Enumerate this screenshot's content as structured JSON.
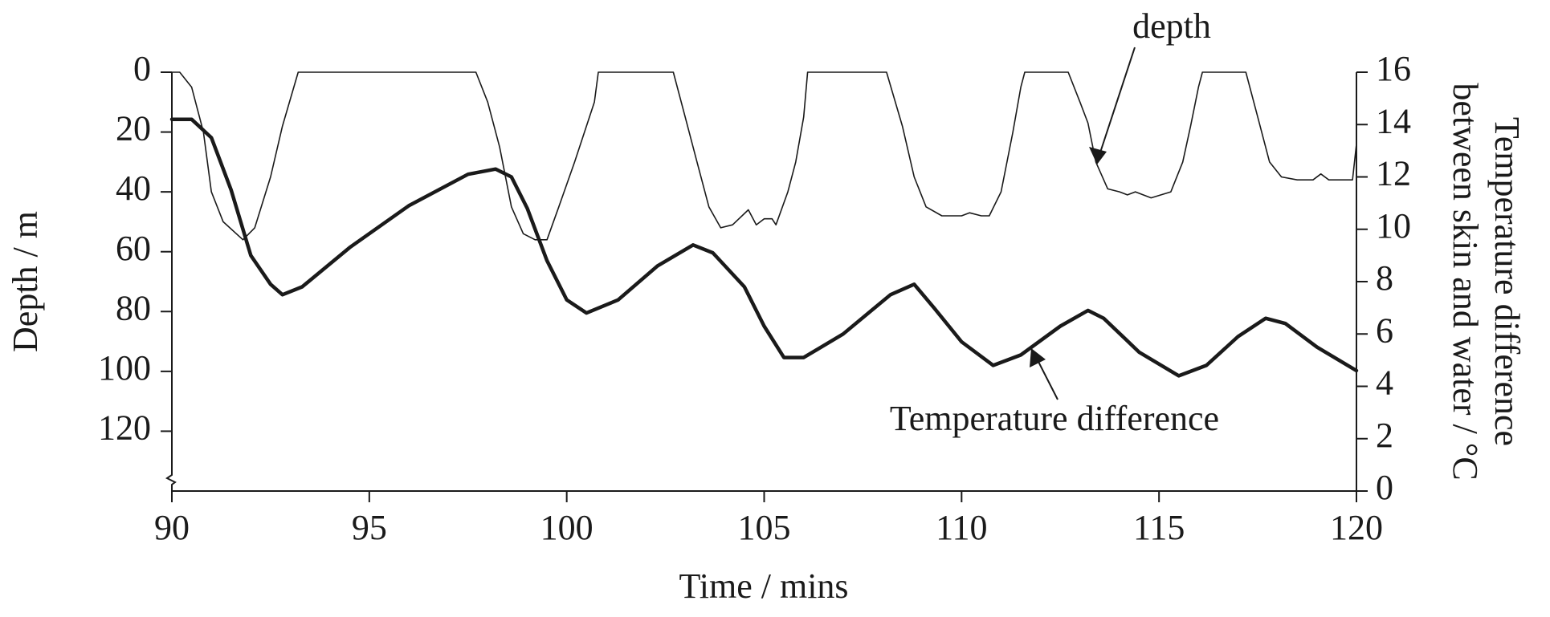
{
  "chart_data": {
    "type": "line",
    "xlabel": "Time / mins",
    "ylabel": "Depth / m",
    "y2label": [
      "Temperature difference",
      "between skin and water / °C"
    ],
    "xlim": [
      90,
      120
    ],
    "xticks": [
      90,
      95,
      100,
      105,
      110,
      115,
      120
    ],
    "ylim": [
      0,
      140
    ],
    "yticks": [
      0,
      20,
      40,
      60,
      80,
      100,
      120
    ],
    "invert_y": true,
    "y2lim": [
      0,
      16
    ],
    "y2ticks": [
      0,
      2,
      4,
      6,
      8,
      10,
      12,
      14,
      16
    ],
    "series": [
      {
        "name": "depth",
        "color": "#1a1a1a",
        "linewidth": 1.6,
        "x": [
          90,
          90.2,
          90.5,
          90.8,
          91,
          91.3,
          91.8,
          92.1,
          92.5,
          92.8,
          93.2,
          97.7,
          98,
          98.3,
          98.6,
          98.9,
          99.2,
          99.5,
          99.8,
          100.2,
          100.7,
          100.8,
          102.7,
          103,
          103.3,
          103.6,
          103.9,
          104.2,
          104.6,
          104.8,
          105,
          105.2,
          105.3,
          105.6,
          105.8,
          106,
          106.1,
          108.1,
          108.5,
          108.8,
          109.1,
          109.5,
          110,
          110.2,
          110.5,
          110.7,
          111,
          111.3,
          111.5,
          111.6,
          112.7,
          113,
          113.2,
          113.4,
          113.7,
          114,
          114.2,
          114.4,
          114.6,
          114.8,
          115.3,
          115.6,
          115.8,
          116,
          116.1,
          117.2,
          117.5,
          117.8,
          118.1,
          118.5,
          118.9,
          119.1,
          119.3,
          119.6,
          119.9,
          120
        ],
        "values": [
          0,
          0,
          5,
          20,
          40,
          50,
          56,
          52,
          35,
          18,
          0,
          0,
          10,
          25,
          45,
          54,
          56,
          56,
          45,
          30,
          10,
          0,
          0,
          15,
          30,
          45,
          52,
          51,
          46,
          51,
          49,
          49,
          51,
          40,
          30,
          15,
          0,
          0,
          18,
          35,
          45,
          48,
          48,
          47,
          48,
          48,
          40,
          20,
          5,
          0,
          0,
          10,
          17,
          30,
          39,
          40,
          41,
          40,
          41,
          42,
          40,
          30,
          18,
          5,
          0,
          0,
          15,
          30,
          35,
          36,
          36,
          34,
          36,
          36,
          36,
          24
        ]
      },
      {
        "name": "Temperature difference",
        "color": "#1a1a1a",
        "linewidth": 4.5,
        "axis": "y2",
        "x": [
          90,
          90.5,
          91,
          91.5,
          92,
          92.5,
          92.8,
          93.3,
          94.5,
          96,
          97.5,
          98.2,
          98.6,
          99,
          99.5,
          100,
          100.5,
          101.3,
          102.3,
          103.2,
          103.7,
          104.5,
          105,
          105.5,
          106,
          107,
          108.2,
          108.8,
          109.3,
          110,
          110.8,
          111.5,
          112.5,
          113.2,
          113.6,
          114.5,
          115.5,
          116.2,
          117,
          117.7,
          118.2,
          119,
          120
        ],
        "values": [
          14.2,
          14.2,
          13.5,
          11.5,
          9,
          7.9,
          7.5,
          7.8,
          9.3,
          10.9,
          12.1,
          12.3,
          12,
          10.8,
          8.8,
          7.3,
          6.8,
          7.3,
          8.6,
          9.4,
          9.1,
          7.8,
          6.3,
          5.1,
          5.1,
          6,
          7.5,
          7.9,
          7,
          5.7,
          4.8,
          5.2,
          6.3,
          6.9,
          6.6,
          5.3,
          4.4,
          4.8,
          5.9,
          6.6,
          6.4,
          5.5,
          4.6
        ]
      }
    ]
  }
}
